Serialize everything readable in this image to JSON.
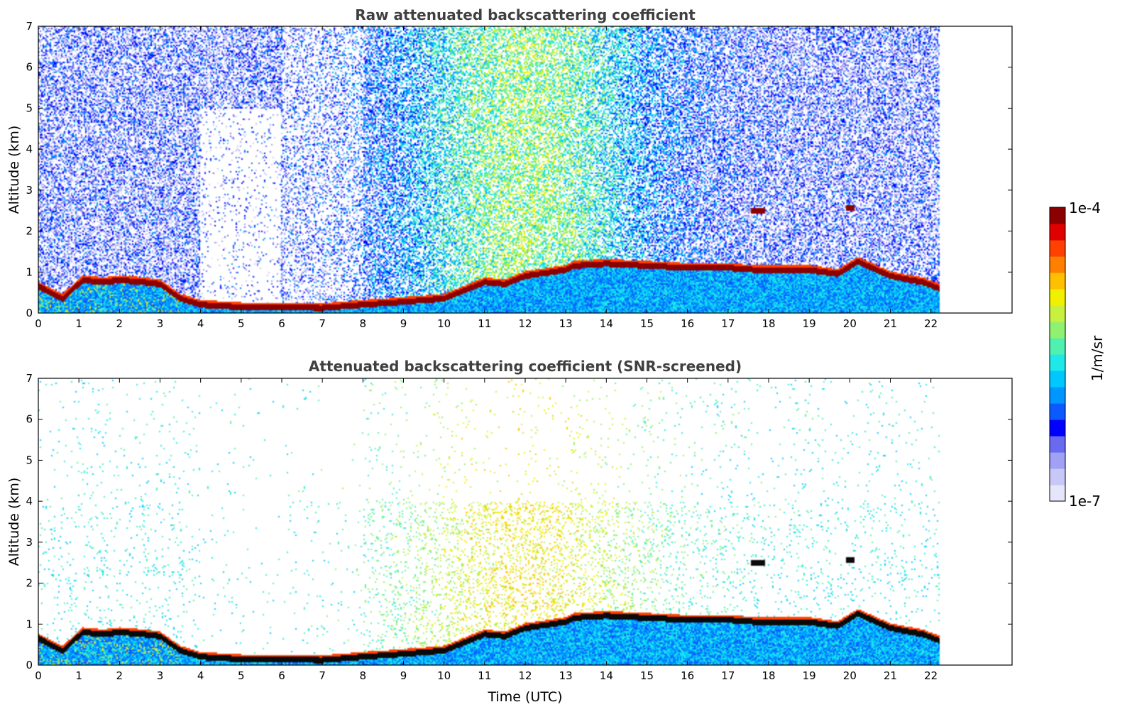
{
  "chart_data": [
    {
      "type": "heatmap",
      "title": "Raw attenuated backscattering coefficient",
      "xlabel": "",
      "ylabel": "Altitude (km)",
      "xlim": [
        0,
        24
      ],
      "ylim": [
        0,
        7
      ],
      "x_ticks": [
        "0",
        "1",
        "2",
        "3",
        "4",
        "5",
        "6",
        "7",
        "8",
        "9",
        "10",
        "11",
        "12",
        "13",
        "14",
        "15",
        "16",
        "17",
        "18",
        "19",
        "20",
        "21",
        "22"
      ],
      "y_ticks": [
        "0",
        "1",
        "2",
        "3",
        "4",
        "5",
        "6",
        "7"
      ],
      "data_end_time": 22.2,
      "boundary_layer_top_km": [
        [
          0,
          0.65
        ],
        [
          0.6,
          0.35
        ],
        [
          1.1,
          0.8
        ],
        [
          1.6,
          0.75
        ],
        [
          2.0,
          0.8
        ],
        [
          2.6,
          0.75
        ],
        [
          3.0,
          0.7
        ],
        [
          3.5,
          0.35
        ],
        [
          4.0,
          0.2
        ],
        [
          5.0,
          0.14
        ],
        [
          6.0,
          0.13
        ],
        [
          7.0,
          0.12
        ],
        [
          8.0,
          0.2
        ],
        [
          9.0,
          0.27
        ],
        [
          10.0,
          0.35
        ],
        [
          11.0,
          0.75
        ],
        [
          11.5,
          0.7
        ],
        [
          12.0,
          0.9
        ],
        [
          13.0,
          1.05
        ],
        [
          13.2,
          1.15
        ],
        [
          14.0,
          1.2
        ],
        [
          15.0,
          1.15
        ],
        [
          16.0,
          1.1
        ],
        [
          17.0,
          1.1
        ],
        [
          17.7,
          1.05
        ],
        [
          18.0,
          1.05
        ],
        [
          19.0,
          1.05
        ],
        [
          19.7,
          0.95
        ],
        [
          20.2,
          1.25
        ],
        [
          21.0,
          0.9
        ],
        [
          21.8,
          0.75
        ],
        [
          22.2,
          0.6
        ]
      ],
      "elevated_layers": [
        {
          "time_start": 17.55,
          "time_end": 17.9,
          "altitude_km": 2.48
        },
        {
          "time_start": 19.9,
          "time_end": 20.1,
          "altitude_km": 2.55
        }
      ],
      "noise_level": "high"
    },
    {
      "type": "heatmap",
      "title": "Attenuated backscattering coefficient (SNR-screened)",
      "xlabel": "Time (UTC)",
      "ylabel": "Altitude (km)",
      "xlim": [
        0,
        24
      ],
      "ylim": [
        0,
        7
      ],
      "x_ticks": [
        "0",
        "1",
        "2",
        "3",
        "4",
        "5",
        "6",
        "7",
        "8",
        "9",
        "10",
        "11",
        "12",
        "13",
        "14",
        "15",
        "16",
        "17",
        "18",
        "19",
        "20",
        "21",
        "22"
      ],
      "y_ticks": [
        "0",
        "1",
        "2",
        "3",
        "4",
        "5",
        "6",
        "7"
      ],
      "data_end_time": 22.2,
      "noise_level": "screened"
    }
  ],
  "colorbar": {
    "label": "1/m/sr",
    "max_label": "1e-4",
    "min_label": "1e-7",
    "min": 1e-07,
    "max": 0.0001,
    "scale": "log",
    "colormap": "jet",
    "colors": [
      "#e6e6fb",
      "#c8c8f8",
      "#a0a0f5",
      "#6a6af0",
      "#0000ff",
      "#0a5aff",
      "#0096ff",
      "#00c8ff",
      "#20e8e8",
      "#50f0b0",
      "#90f070",
      "#c8f040",
      "#f0f000",
      "#ffc000",
      "#ff8000",
      "#ff4000",
      "#e00000",
      "#8b0000"
    ]
  }
}
